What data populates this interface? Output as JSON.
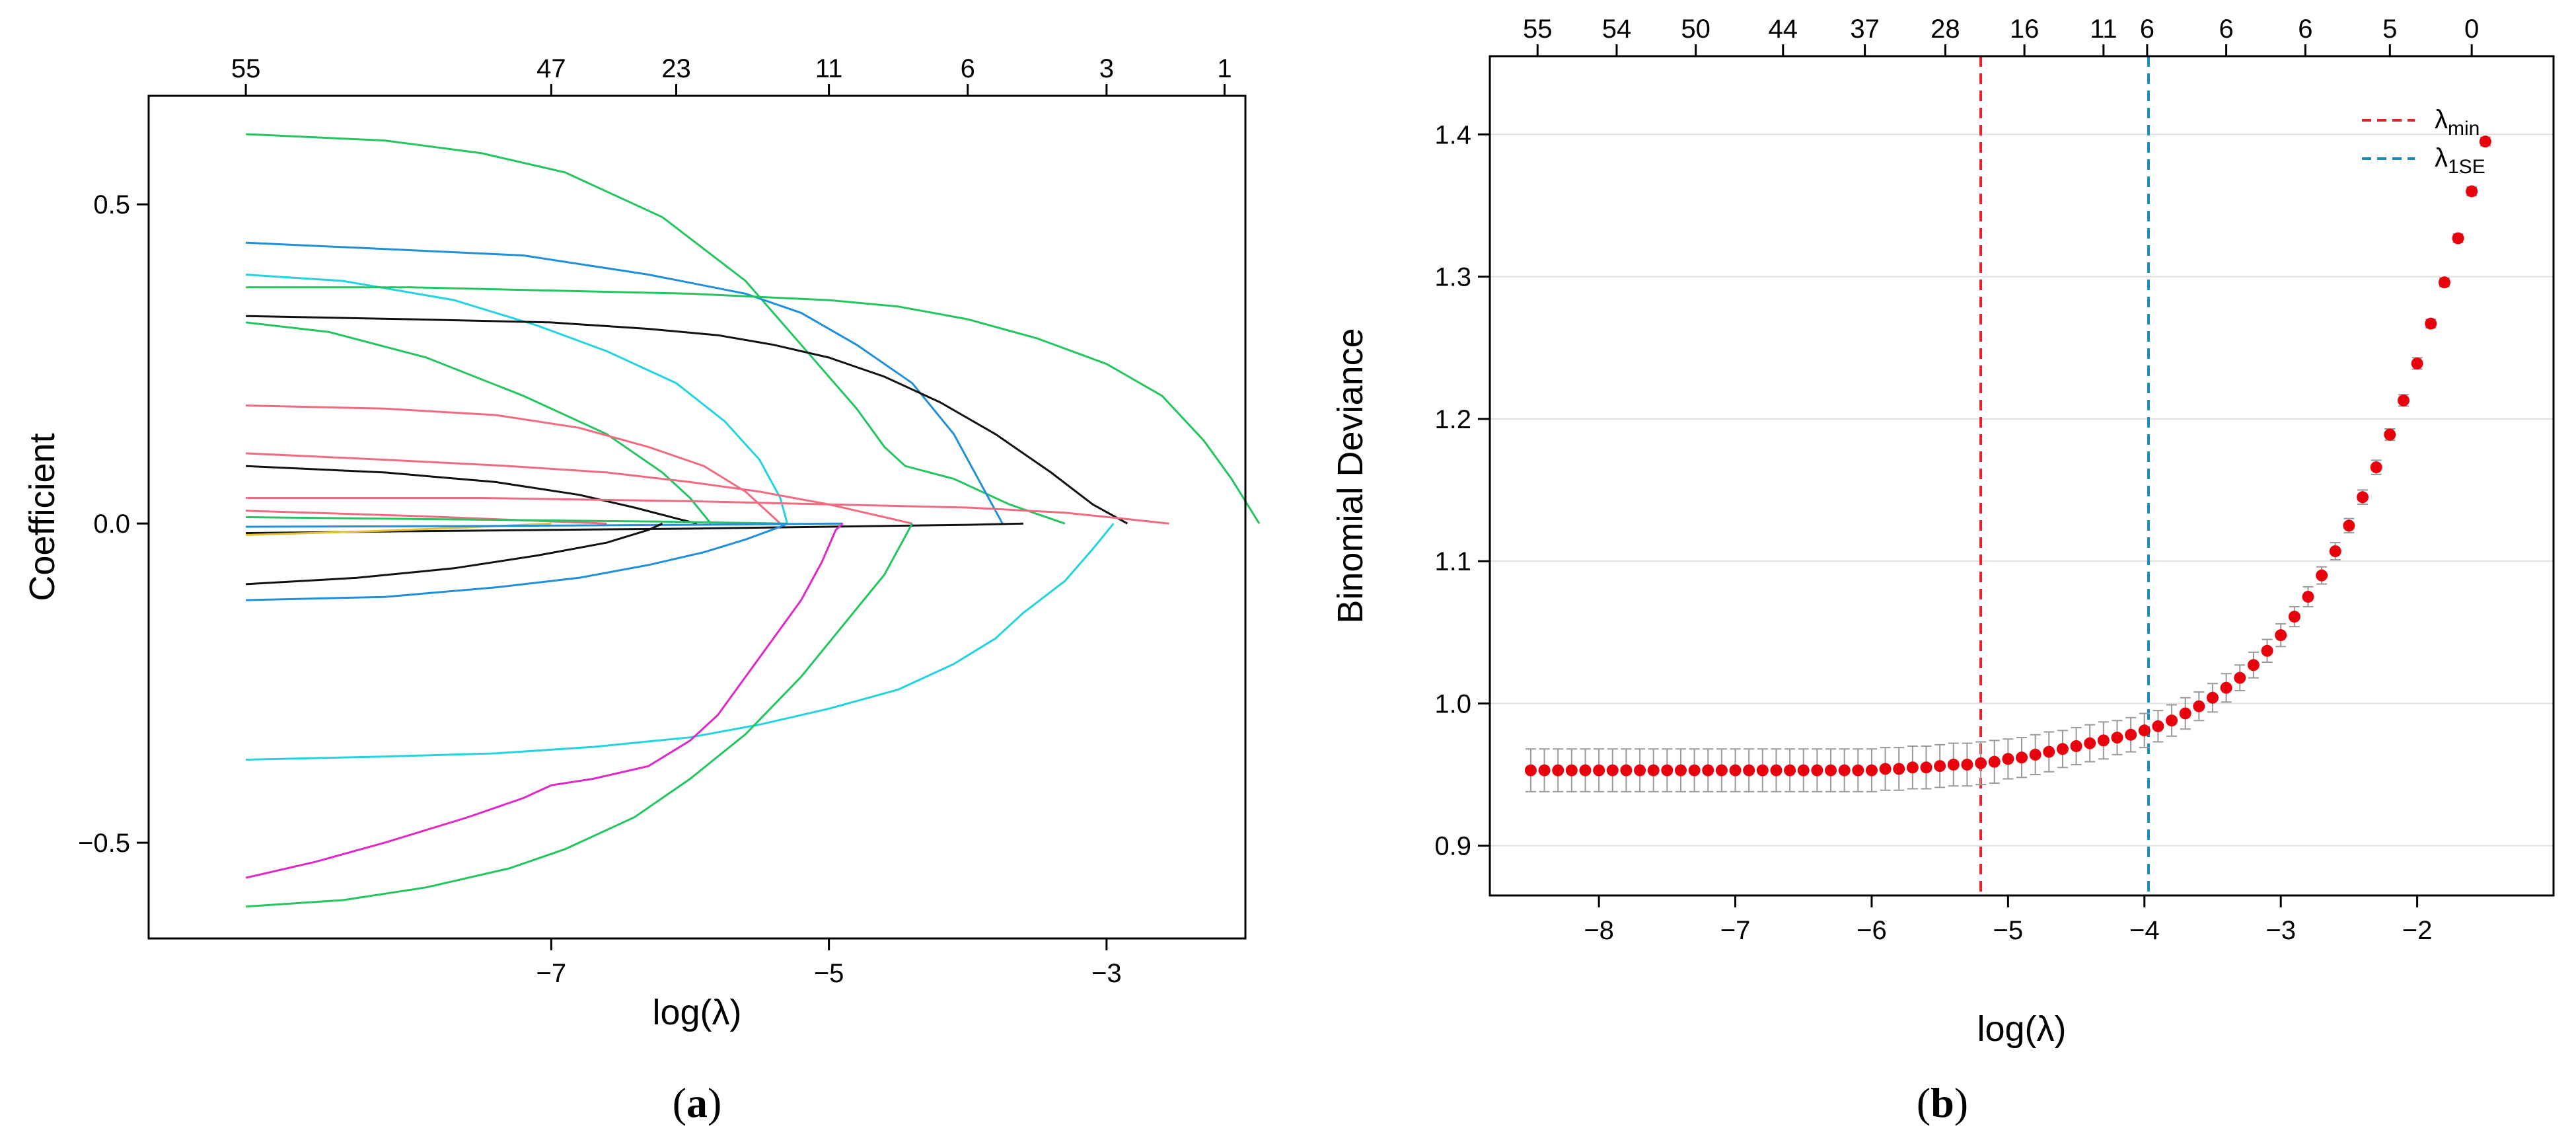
{
  "chart_data": [
    {
      "type": "line",
      "panel_label": "(a)",
      "panel_letter": "a",
      "xlabel": "log(λ)",
      "ylabel": "Coefficient",
      "xlim": [
        -9.9,
        -2.0
      ],
      "ylim": [
        -0.65,
        0.67
      ],
      "x_ticks": [
        -7,
        -5,
        -3
      ],
      "x_tick_labels": [
        "−7",
        "−5",
        "−3"
      ],
      "y_ticks": [
        -0.5,
        0.0,
        0.5
      ],
      "y_tick_labels": [
        "−0.5",
        "0.0",
        "0.5"
      ],
      "top_axis_ticks": [
        -9.2,
        -7.0,
        -6.1,
        -5.0,
        -4.0,
        -3.0,
        -2.15
      ],
      "top_axis_labels": [
        "55",
        "47",
        "23",
        "11",
        "6",
        "3",
        "1"
      ],
      "series": [
        {
          "color": "#22c55e",
          "points": [
            [
              -9.2,
              0.61
            ],
            [
              -8.2,
              0.6
            ],
            [
              -7.5,
              0.58
            ],
            [
              -6.9,
              0.55
            ],
            [
              -6.2,
              0.48
            ],
            [
              -5.6,
              0.38
            ],
            [
              -5.2,
              0.28
            ],
            [
              -4.8,
              0.18
            ],
            [
              -4.6,
              0.12
            ],
            [
              -4.45,
              0.09
            ],
            [
              -4.1,
              0.07
            ],
            [
              -3.7,
              0.03
            ],
            [
              -3.3,
              0
            ]
          ]
        },
        {
          "color": "#1e8fd8",
          "points": [
            [
              -9.2,
              0.44
            ],
            [
              -8.2,
              0.43
            ],
            [
              -7.2,
              0.42
            ],
            [
              -6.3,
              0.39
            ],
            [
              -5.6,
              0.36
            ],
            [
              -5.2,
              0.33
            ],
            [
              -4.8,
              0.28
            ],
            [
              -4.4,
              0.22
            ],
            [
              -4.1,
              0.14
            ],
            [
              -3.9,
              0.06
            ],
            [
              -3.75,
              0
            ]
          ]
        },
        {
          "color": "#22d3e0",
          "points": [
            [
              -9.2,
              0.39
            ],
            [
              -8.5,
              0.38
            ],
            [
              -7.7,
              0.35
            ],
            [
              -7.1,
              0.31
            ],
            [
              -6.6,
              0.27
            ],
            [
              -6.1,
              0.22
            ],
            [
              -5.75,
              0.16
            ],
            [
              -5.5,
              0.1
            ],
            [
              -5.35,
              0.04
            ],
            [
              -5.3,
              0
            ]
          ]
        },
        {
          "color": "#22c55e",
          "points": [
            [
              -9.2,
              0.37
            ],
            [
              -8.0,
              0.37
            ],
            [
              -7.0,
              0.365
            ],
            [
              -6.0,
              0.36
            ],
            [
              -5.0,
              0.35
            ],
            [
              -4.5,
              0.34
            ],
            [
              -4.0,
              0.32
            ],
            [
              -3.5,
              0.29
            ],
            [
              -3.0,
              0.25
            ],
            [
              -2.6,
              0.2
            ],
            [
              -2.3,
              0.13
            ],
            [
              -2.1,
              0.07
            ],
            [
              -1.9,
              0
            ]
          ]
        },
        {
          "color": "#111111",
          "points": [
            [
              -9.2,
              0.325
            ],
            [
              -8.0,
              0.32
            ],
            [
              -7.0,
              0.315
            ],
            [
              -6.3,
              0.305
            ],
            [
              -5.8,
              0.295
            ],
            [
              -5.4,
              0.28
            ],
            [
              -5.0,
              0.26
            ],
            [
              -4.6,
              0.23
            ],
            [
              -4.2,
              0.19
            ],
            [
              -3.8,
              0.14
            ],
            [
              -3.4,
              0.08
            ],
            [
              -3.1,
              0.03
            ],
            [
              -2.85,
              0
            ]
          ]
        },
        {
          "color": "#22c55e",
          "points": [
            [
              -9.2,
              0.315
            ],
            [
              -8.6,
              0.3
            ],
            [
              -7.9,
              0.26
            ],
            [
              -7.2,
              0.2
            ],
            [
              -6.6,
              0.14
            ],
            [
              -6.2,
              0.08
            ],
            [
              -6.0,
              0.04
            ],
            [
              -5.85,
              0
            ]
          ]
        },
        {
          "color": "#f06a82",
          "points": [
            [
              -9.2,
              0.185
            ],
            [
              -8.2,
              0.18
            ],
            [
              -7.4,
              0.17
            ],
            [
              -6.8,
              0.15
            ],
            [
              -6.3,
              0.12
            ],
            [
              -5.9,
              0.09
            ],
            [
              -5.6,
              0.05
            ],
            [
              -5.35,
              0
            ]
          ]
        },
        {
          "color": "#f06a82",
          "points": [
            [
              -9.2,
              0.11
            ],
            [
              -8.2,
              0.1
            ],
            [
              -7.3,
              0.09
            ],
            [
              -6.6,
              0.08
            ],
            [
              -6.0,
              0.065
            ],
            [
              -5.5,
              0.05
            ],
            [
              -5.0,
              0.03
            ],
            [
              -4.6,
              0.01
            ],
            [
              -4.4,
              0
            ]
          ]
        },
        {
          "color": "#111111",
          "points": [
            [
              -9.2,
              0.09
            ],
            [
              -8.2,
              0.08
            ],
            [
              -7.4,
              0.065
            ],
            [
              -6.8,
              0.045
            ],
            [
              -6.4,
              0.025
            ],
            [
              -6.1,
              0.008
            ],
            [
              -5.95,
              0
            ]
          ]
        },
        {
          "color": "#f06a82",
          "points": [
            [
              -9.2,
              0.04
            ],
            [
              -7.5,
              0.04
            ],
            [
              -6.0,
              0.035
            ],
            [
              -5.0,
              0.03
            ],
            [
              -4.0,
              0.025
            ],
            [
              -3.3,
              0.017
            ],
            [
              -2.9,
              0.008
            ],
            [
              -2.55,
              0
            ]
          ]
        },
        {
          "color": "#f06a82",
          "points": [
            [
              -9.2,
              0.02
            ],
            [
              -8.0,
              0.012
            ],
            [
              -7.2,
              0.005
            ],
            [
              -6.6,
              0
            ]
          ]
        },
        {
          "color": "#111111",
          "points": [
            [
              -9.2,
              -0.015
            ],
            [
              -8.0,
              -0.012
            ],
            [
              -7.0,
              -0.01
            ],
            [
              -6.0,
              -0.008
            ],
            [
              -5.0,
              -0.005
            ],
            [
              -4.0,
              -0.002
            ],
            [
              -3.6,
              0
            ]
          ]
        },
        {
          "color": "#e3c232",
          "points": [
            [
              -9.2,
              -0.018
            ],
            [
              -8.3,
              -0.012
            ],
            [
              -7.6,
              -0.006
            ],
            [
              -7.0,
              0
            ]
          ]
        },
        {
          "color": "#22c55e",
          "points": [
            [
              -9.2,
              0.01
            ],
            [
              -7.5,
              0.006
            ],
            [
              -6.2,
              0.003
            ],
            [
              -5.3,
              0
            ]
          ]
        },
        {
          "color": "#1e8fd8",
          "points": [
            [
              -9.2,
              -0.005
            ],
            [
              -7.5,
              -0.004
            ],
            [
              -6.0,
              -0.002
            ],
            [
              -4.9,
              0
            ]
          ]
        },
        {
          "color": "#111111",
          "points": [
            [
              -9.2,
              -0.095
            ],
            [
              -8.4,
              -0.085
            ],
            [
              -7.7,
              -0.07
            ],
            [
              -7.1,
              -0.05
            ],
            [
              -6.6,
              -0.03
            ],
            [
              -6.3,
              -0.01
            ],
            [
              -6.2,
              0
            ]
          ]
        },
        {
          "color": "#1e8fd8",
          "points": [
            [
              -9.2,
              -0.12
            ],
            [
              -8.2,
              -0.115
            ],
            [
              -7.4,
              -0.1
            ],
            [
              -6.8,
              -0.085
            ],
            [
              -6.3,
              -0.065
            ],
            [
              -5.9,
              -0.045
            ],
            [
              -5.6,
              -0.025
            ],
            [
              -5.35,
              -0.005
            ],
            [
              -5.3,
              0
            ]
          ]
        },
        {
          "color": "#22d3e0",
          "points": [
            [
              -9.2,
              -0.37
            ],
            [
              -8.2,
              -0.365
            ],
            [
              -7.4,
              -0.36
            ],
            [
              -6.7,
              -0.35
            ],
            [
              -6.0,
              -0.335
            ],
            [
              -5.5,
              -0.315
            ],
            [
              -5.0,
              -0.29
            ],
            [
              -4.5,
              -0.26
            ],
            [
              -4.1,
              -0.22
            ],
            [
              -3.8,
              -0.18
            ],
            [
              -3.6,
              -0.14
            ],
            [
              -3.3,
              -0.09
            ],
            [
              -3.1,
              -0.04
            ],
            [
              -2.95,
              0
            ]
          ]
        },
        {
          "color": "#e028c8",
          "points": [
            [
              -9.2,
              -0.555
            ],
            [
              -8.7,
              -0.53
            ],
            [
              -8.2,
              -0.5
            ],
            [
              -7.6,
              -0.46
            ],
            [
              -7.2,
              -0.43
            ],
            [
              -7.0,
              -0.41
            ],
            [
              -6.7,
              -0.4
            ],
            [
              -6.3,
              -0.38
            ],
            [
              -6.0,
              -0.34
            ],
            [
              -5.8,
              -0.3
            ],
            [
              -5.6,
              -0.24
            ],
            [
              -5.4,
              -0.18
            ],
            [
              -5.2,
              -0.12
            ],
            [
              -5.05,
              -0.06
            ],
            [
              -4.95,
              -0.01
            ],
            [
              -4.9,
              0
            ]
          ]
        },
        {
          "color": "#22c55e",
          "points": [
            [
              -9.2,
              -0.6
            ],
            [
              -8.5,
              -0.59
            ],
            [
              -7.9,
              -0.57
            ],
            [
              -7.3,
              -0.54
            ],
            [
              -6.9,
              -0.51
            ],
            [
              -6.4,
              -0.46
            ],
            [
              -6.0,
              -0.4
            ],
            [
              -5.6,
              -0.33
            ],
            [
              -5.2,
              -0.24
            ],
            [
              -4.9,
              -0.16
            ],
            [
              -4.6,
              -0.08
            ],
            [
              -4.45,
              -0.02
            ],
            [
              -4.4,
              0
            ]
          ]
        }
      ]
    },
    {
      "type": "scatter",
      "panel_label": "(b)",
      "panel_letter": "b",
      "xlabel": "log(λ)",
      "ylabel": "Binomial Deviance",
      "xlim": [
        -8.8,
        -1.0
      ],
      "ylim": [
        0.865,
        1.455
      ],
      "x_ticks": [
        -8,
        -7,
        -6,
        -5,
        -4,
        -3,
        -2
      ],
      "x_tick_labels": [
        "−8",
        "−7",
        "−6",
        "−5",
        "−4",
        "−3",
        "−2"
      ],
      "y_ticks": [
        0.9,
        1.0,
        1.1,
        1.2,
        1.3,
        1.4
      ],
      "y_tick_labels": [
        "0.9",
        "1.0",
        "1.1",
        "1.2",
        "1.3",
        "1.4"
      ],
      "grid": "horizontal",
      "top_axis_ticks": [
        -8.45,
        -7.87,
        -7.29,
        -6.65,
        -6.05,
        -5.46,
        -4.88,
        -4.3,
        -3.98,
        -3.4,
        -2.82,
        -2.2,
        -1.6
      ],
      "top_axis_labels": [
        "55",
        "54",
        "50",
        "44",
        "37",
        "28",
        "16",
        "11",
        "6",
        "6",
        "6",
        "5",
        "0"
      ],
      "x": [
        -8.5,
        -8.4,
        -8.3,
        -8.2,
        -8.1,
        -8.0,
        -7.9,
        -7.8,
        -7.7,
        -7.6,
        -7.5,
        -7.4,
        -7.3,
        -7.2,
        -7.1,
        -7.0,
        -6.9,
        -6.8,
        -6.7,
        -6.6,
        -6.5,
        -6.4,
        -6.3,
        -6.2,
        -6.1,
        -6.0,
        -5.9,
        -5.8,
        -5.7,
        -5.6,
        -5.5,
        -5.4,
        -5.3,
        -5.2,
        -5.1,
        -5.0,
        -4.9,
        -4.8,
        -4.7,
        -4.6,
        -4.5,
        -4.4,
        -4.3,
        -4.2,
        -4.1,
        -4.0,
        -3.9,
        -3.8,
        -3.7,
        -3.6,
        -3.5,
        -3.4,
        -3.3,
        -3.2,
        -3.1,
        -3.0,
        -2.9,
        -2.8,
        -2.7,
        -2.6,
        -2.5,
        -2.4,
        -2.3,
        -2.2,
        -2.1,
        -2.0,
        -1.9,
        -1.8,
        -1.7,
        -1.6,
        -1.5
      ],
      "values": [
        0.953,
        0.953,
        0.953,
        0.953,
        0.953,
        0.953,
        0.953,
        0.953,
        0.953,
        0.953,
        0.953,
        0.953,
        0.953,
        0.953,
        0.953,
        0.953,
        0.953,
        0.953,
        0.953,
        0.953,
        0.953,
        0.953,
        0.953,
        0.953,
        0.953,
        0.953,
        0.954,
        0.954,
        0.955,
        0.955,
        0.956,
        0.957,
        0.957,
        0.958,
        0.959,
        0.961,
        0.962,
        0.964,
        0.966,
        0.968,
        0.97,
        0.972,
        0.974,
        0.976,
        0.978,
        0.981,
        0.984,
        0.988,
        0.993,
        0.998,
        1.004,
        1.011,
        1.018,
        1.027,
        1.037,
        1.048,
        1.061,
        1.075,
        1.09,
        1.107,
        1.125,
        1.145,
        1.166,
        1.189,
        1.213,
        1.239,
        1.267,
        1.296,
        1.327,
        1.36,
        1.395
      ],
      "error": [
        0.015,
        0.015,
        0.015,
        0.015,
        0.015,
        0.015,
        0.015,
        0.015,
        0.015,
        0.015,
        0.015,
        0.015,
        0.015,
        0.015,
        0.015,
        0.015,
        0.015,
        0.015,
        0.015,
        0.015,
        0.015,
        0.015,
        0.015,
        0.015,
        0.015,
        0.015,
        0.015,
        0.015,
        0.015,
        0.015,
        0.015,
        0.015,
        0.015,
        0.015,
        0.015,
        0.014,
        0.014,
        0.014,
        0.014,
        0.013,
        0.013,
        0.013,
        0.013,
        0.012,
        0.012,
        0.012,
        0.011,
        0.011,
        0.011,
        0.01,
        0.01,
        0.01,
        0.009,
        0.009,
        0.008,
        0.008,
        0.007,
        0.007,
        0.006,
        0.006,
        0.005,
        0.005,
        0.005,
        0.004,
        0.004,
        0.004,
        0.003,
        0.003,
        0.003,
        0.003,
        0.003
      ],
      "vlines": [
        {
          "name": "λmin",
          "x": -5.2,
          "color": "#e8202a"
        },
        {
          "name": "λ1SE",
          "x": -3.97,
          "color": "#1f8ab8"
        }
      ],
      "legend": {
        "position": "top-right",
        "entries": [
          {
            "base": "λ",
            "sub": "min",
            "color": "#e8202a"
          },
          {
            "base": "λ",
            "sub": "1SE",
            "color": "#1f8ab8"
          }
        ]
      },
      "point_color": "#e8000d",
      "errorbar_color": "#9a9a9a"
    }
  ]
}
